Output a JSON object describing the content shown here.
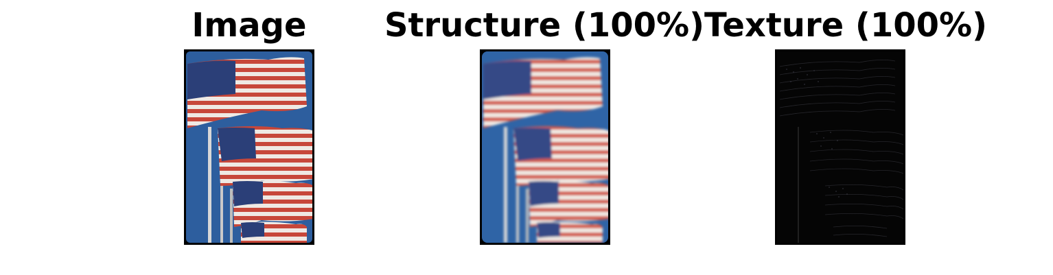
{
  "panels": [
    {
      "title": "Image",
      "image_kind": "original-flag-photo"
    },
    {
      "title": "Structure (100%)",
      "image_kind": "smoothed-flag-photo"
    },
    {
      "title": "Texture (100%)",
      "image_kind": "texture-residual-dark"
    }
  ],
  "colors": {
    "sky": "#2d5e9e",
    "stripe_red": "#c7473a",
    "stripe_white": "#efe9e4",
    "canton_blue": "#2b3f78",
    "pole": "#d8d8d8",
    "frame": "#000000"
  }
}
